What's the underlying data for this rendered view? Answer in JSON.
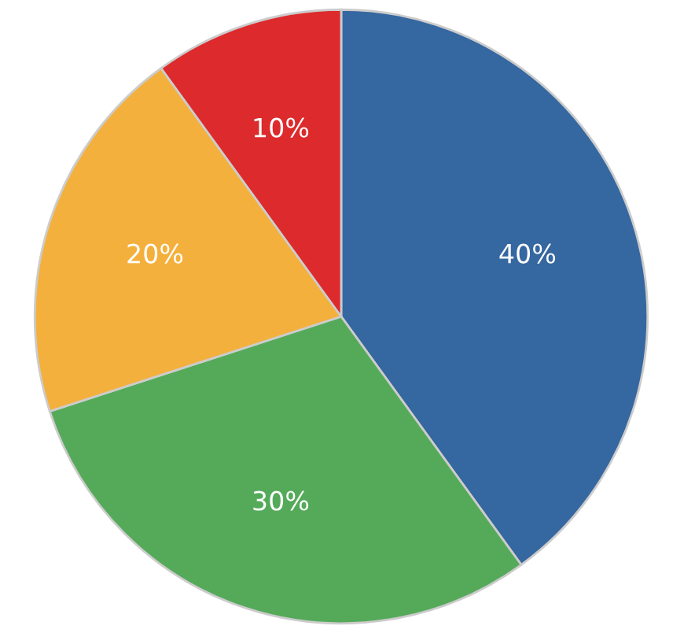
{
  "chart_data": {
    "type": "pie",
    "categories": [
      null,
      null,
      null,
      null
    ],
    "values": [
      40,
      30,
      20,
      10
    ],
    "colors": [
      "#3567a0",
      "#55aa5a",
      "#f4b03c",
      "#dd2a2c"
    ],
    "value_labels": [
      "40%",
      "30%",
      "20%",
      "10%"
    ]
  }
}
